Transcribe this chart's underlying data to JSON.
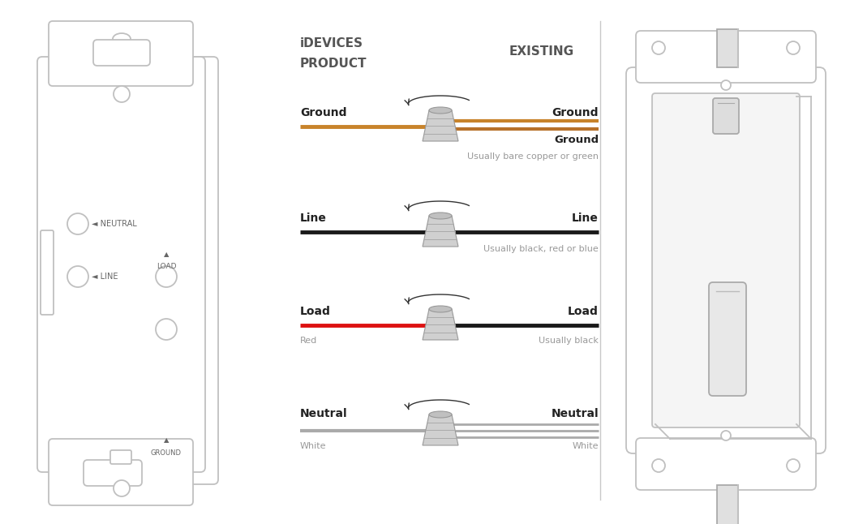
{
  "bg_color": "#ffffff",
  "line_color": "#c8c8c8",
  "dark_line": "#333333",
  "wire_rows": [
    {
      "label_left": "Ground",
      "label_right": "Ground",
      "sub_label_right": "Ground",
      "sub_text_right": "Usually bare copper or green",
      "left_color": "#C8832A",
      "right_color1": "#C8832A",
      "right_color2": "#B8722A",
      "double_right": true,
      "sub_label_left": null,
      "sub_text_left": null
    },
    {
      "label_left": "Line",
      "label_right": "Line",
      "sub_label_right": null,
      "sub_text_right": "Usually black, red or blue",
      "left_color": "#1a1a1a",
      "right_color1": "#1a1a1a",
      "right_color2": null,
      "double_right": false,
      "sub_label_left": null,
      "sub_text_left": null
    },
    {
      "label_left": "Load",
      "label_right": "Load",
      "sub_label_right": null,
      "sub_text_right": "Usually black",
      "left_color": "#dd1111",
      "right_color1": "#1a1a1a",
      "right_color2": null,
      "double_right": false,
      "sub_label_left": "Red",
      "sub_text_left": null
    },
    {
      "label_left": "Neutral",
      "label_right": "Neutral",
      "sub_label_right": null,
      "sub_text_right": "White",
      "left_color": "#aaaaaa",
      "right_color1": "#aaaaaa",
      "right_color2": null,
      "double_right": true,
      "sub_label_left": "White",
      "sub_text_left": null
    }
  ]
}
